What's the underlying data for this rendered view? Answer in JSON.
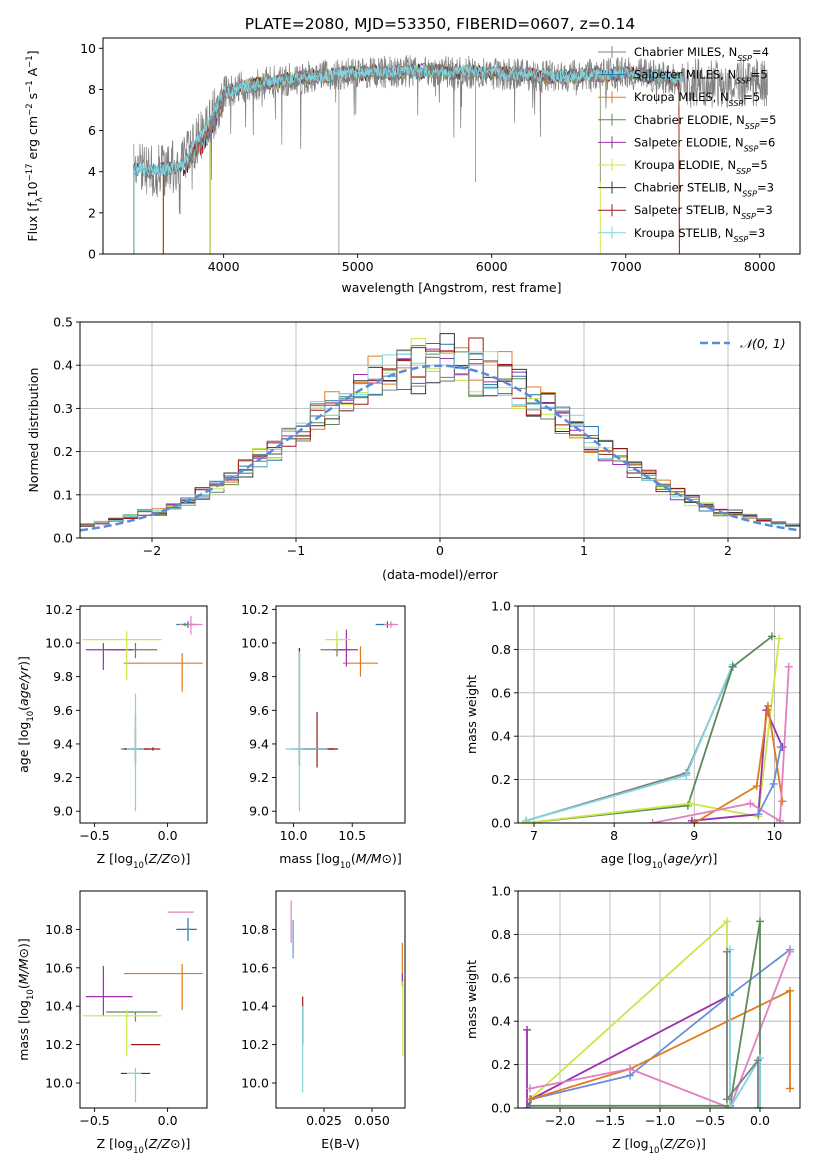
{
  "title": "PLATE=2080, MJD=53350, FIBERID=0607, z=0.14",
  "colors": {
    "chabrier_miles": "#808080",
    "salpeter_miles": "#1f77b4",
    "kroupa_miles": "#e07b1e",
    "chabrier_elodie": "#5a8a5a",
    "salpeter_elodie": "#9b30b0",
    "kroupa_elodie": "#c8e84a",
    "chabrier_stelib": "#333333",
    "salpeter_stelib": "#a01818",
    "kroupa_stelib": "#7fd6e0",
    "normal_line": "#5b8bd8",
    "weight_blue": "#6a8fd8",
    "weight_pink": "#e080c0"
  },
  "chart_data": [
    {
      "id": "spectrum",
      "type": "line",
      "xlabel": "wavelength [Angstrom, rest frame]",
      "ylabel_parts": [
        "Flux [f",
        "λ",
        "10",
        "−17",
        " erg cm",
        "−2",
        " s",
        "−1",
        " A",
        "−1",
        "]"
      ],
      "xlim": [
        3100,
        8300
      ],
      "ylim": [
        0,
        10.5
      ],
      "xticks": [
        4000,
        5000,
        6000,
        7000,
        8000
      ],
      "yticks": [
        0,
        2,
        4,
        6,
        8,
        10
      ],
      "spectrum_profile": {
        "x": [
          3300,
          3500,
          3700,
          3800,
          3900,
          4000,
          4200,
          4500,
          5000,
          5500,
          6000,
          6500,
          7000,
          7400
        ],
        "y": [
          4.2,
          4.0,
          4.4,
          5.5,
          6.5,
          7.9,
          8.2,
          8.5,
          8.8,
          8.9,
          8.8,
          8.6,
          8.8,
          8.5
        ]
      },
      "legend": [
        {
          "imf": "Chabrier",
          "lib": "MILES",
          "n": 4,
          "color_key": "chabrier_miles"
        },
        {
          "imf": "Salpeter",
          "lib": "MILES",
          "n": 5,
          "color_key": "salpeter_miles"
        },
        {
          "imf": "Kroupa",
          "lib": "MILES",
          "n": 5,
          "color_key": "kroupa_miles"
        },
        {
          "imf": "Chabrier",
          "lib": "ELODIE",
          "n": 5,
          "color_key": "chabrier_elodie"
        },
        {
          "imf": "Salpeter",
          "lib": "ELODIE",
          "n": 6,
          "color_key": "salpeter_elodie"
        },
        {
          "imf": "Kroupa",
          "lib": "ELODIE",
          "n": 5,
          "color_key": "kroupa_elodie"
        },
        {
          "imf": "Chabrier",
          "lib": "STELIB",
          "n": 3,
          "color_key": "chabrier_stelib"
        },
        {
          "imf": "Salpeter",
          "lib": "STELIB",
          "n": 3,
          "color_key": "salpeter_stelib"
        },
        {
          "imf": "Kroupa",
          "lib": "STELIB",
          "n": 3,
          "color_key": "kroupa_stelib"
        }
      ],
      "legend_sub": "SSP"
    },
    {
      "id": "residuals",
      "type": "line",
      "xlabel": "(data-model)/error",
      "ylabel": "Normed distribution",
      "xlim": [
        -2.5,
        2.5
      ],
      "ylim": [
        0,
        0.5
      ],
      "xticks": [
        -2,
        -1,
        0,
        1,
        2
      ],
      "yticks": [
        0.0,
        0.1,
        0.2,
        0.3,
        0.4,
        0.5
      ],
      "grid": true,
      "legend_label": "𝒩(0, 1)",
      "legend_position": "top-right",
      "bin_width": 0.1
    },
    {
      "id": "age_vs_Z",
      "type": "scatter",
      "xlabel": "Z [log10(Z/Z⊙)]",
      "ylabel": "age  [log10(age/yr)]",
      "xlim": [
        -0.6,
        0.27
      ],
      "ylim": [
        8.93,
        10.22
      ],
      "xticks": [
        -0.5,
        0.0
      ],
      "yticks": [
        9.0,
        9.2,
        9.4,
        9.6,
        9.8,
        10.0,
        10.2
      ],
      "points": [
        {
          "color_key": "chabrier_miles",
          "x": -0.22,
          "y": 9.37,
          "xe": [
            0.1,
            0.1
          ],
          "ye": [
            0.1,
            0.1
          ]
        },
        {
          "color_key": "salpeter_miles",
          "x": 0.14,
          "y": 10.11,
          "xe": [
            0.08,
            0.06
          ],
          "ye": [
            0.02,
            0.02
          ]
        },
        {
          "color_key": "kroupa_miles",
          "x": 0.1,
          "y": 9.88,
          "xe": [
            0.4,
            0.14
          ],
          "ye": [
            0.17,
            0.06
          ]
        },
        {
          "color_key": "chabrier_elodie",
          "x": -0.22,
          "y": 9.96,
          "xe": [
            0.2,
            0.15
          ],
          "ye": [
            0.05,
            0.04
          ]
        },
        {
          "color_key": "salpeter_elodie",
          "x": -0.44,
          "y": 9.96,
          "xe": [
            0.12,
            0.2
          ],
          "ye": [
            0.12,
            0.04
          ]
        },
        {
          "color_key": "kroupa_elodie",
          "x": -0.28,
          "y": 10.02,
          "xe": [
            0.3,
            0.24
          ],
          "ye": [
            0.24,
            0.05
          ]
        },
        {
          "color_key": "chabrier_stelib",
          "x": -0.22,
          "y": 9.37,
          "xe": [
            0.08,
            0.08
          ],
          "ye": [
            0.08,
            0.2
          ]
        },
        {
          "color_key": "salpeter_stelib",
          "x": -0.1,
          "y": 9.37,
          "xe": [
            0.1,
            0.05
          ],
          "ye": [
            0.01,
            0.01
          ]
        },
        {
          "color_key": "kroupa_stelib",
          "x": -0.22,
          "y": 9.37,
          "xe": [
            0.06,
            0.06
          ],
          "ye": [
            0.37,
            0.33
          ]
        },
        {
          "color_key": "weight_pink",
          "x": 0.16,
          "y": 10.11,
          "xe": [
            0.08,
            0.08
          ],
          "ye": [
            0.06,
            0.05
          ]
        },
        {
          "color_key": "chabrier_elodie",
          "x": 0.12,
          "y": 10.11,
          "xe": [
            0.02,
            0.02
          ],
          "ye": [
            0.01,
            0.01
          ]
        }
      ]
    },
    {
      "id": "age_vs_mass",
      "type": "scatter",
      "xlabel": "mass [log10(M/M⊙)]",
      "xlim": [
        9.85,
        10.95
      ],
      "ylim": [
        8.93,
        10.22
      ],
      "xticks": [
        10.0,
        10.5
      ],
      "yticks": [
        9.0,
        9.2,
        9.4,
        9.6,
        9.8,
        10.0,
        10.2
      ],
      "points": [
        {
          "color_key": "chabrier_miles",
          "x": 10.05,
          "y": 9.37,
          "xe": [
            0.08,
            0.3
          ],
          "ye": [
            0.1,
            0.6
          ]
        },
        {
          "color_key": "salpeter_miles",
          "x": 10.8,
          "y": 10.11,
          "xe": [
            0.1,
            0.06
          ],
          "ye": [
            0.02,
            0.02
          ]
        },
        {
          "color_key": "kroupa_miles",
          "x": 10.57,
          "y": 9.88,
          "xe": [
            0.15,
            0.15
          ],
          "ye": [
            0.08,
            0.1
          ]
        },
        {
          "color_key": "chabrier_elodie",
          "x": 10.37,
          "y": 9.96,
          "xe": [
            0.14,
            0.1
          ],
          "ye": [
            0.04,
            0.05
          ]
        },
        {
          "color_key": "salpeter_elodie",
          "x": 10.45,
          "y": 9.96,
          "xe": [
            0.1,
            0.1
          ],
          "ye": [
            0.1,
            0.12
          ]
        },
        {
          "color_key": "kroupa_elodie",
          "x": 10.37,
          "y": 10.02,
          "xe": [
            0.1,
            0.12
          ],
          "ye": [
            0.06,
            0.05
          ]
        },
        {
          "color_key": "chabrier_stelib",
          "x": 10.05,
          "y": 9.37,
          "xe": [
            0.02,
            0.3
          ],
          "ye": [
            0.1,
            0.6
          ]
        },
        {
          "color_key": "salpeter_stelib",
          "x": 10.2,
          "y": 9.37,
          "xe": [
            0.12,
            0.18
          ],
          "ye": [
            0.11,
            0.22
          ]
        },
        {
          "color_key": "kroupa_stelib",
          "x": 10.05,
          "y": 9.37,
          "xe": [
            0.12,
            0.24
          ],
          "ye": [
            0.37,
            0.58
          ]
        },
        {
          "color_key": "weight_pink",
          "x": 10.83,
          "y": 10.11,
          "xe": [
            0.06,
            0.06
          ],
          "ye": [
            0.02,
            0.02
          ]
        }
      ]
    },
    {
      "id": "weight_vs_age",
      "type": "line",
      "xlabel": "age  [log10(age/yr)]",
      "ylabel": "mass weight",
      "xlim": [
        6.8,
        10.32
      ],
      "ylim": [
        0,
        1.0
      ],
      "xticks": [
        7,
        8,
        9,
        10
      ],
      "yticks": [
        0.0,
        0.2,
        0.4,
        0.6,
        0.8,
        1.0
      ],
      "grid": true,
      "series": [
        {
          "color_key": "chabrier_miles",
          "x": [
            6.9,
            8.9,
            9.48
          ],
          "y": [
            0.01,
            0.23,
            0.72
          ]
        },
        {
          "color_key": "kroupa_stelib",
          "x": [
            6.9,
            8.9,
            9.48
          ],
          "y": [
            0.01,
            0.22,
            0.73
          ]
        },
        {
          "color_key": "chabrier_elodie",
          "x": [
            6.9,
            8.92,
            9.48,
            9.97
          ],
          "y": [
            0.0,
            0.08,
            0.72,
            0.86
          ]
        },
        {
          "color_key": "kroupa_elodie",
          "x": [
            6.9,
            8.95,
            9.8,
            10.06
          ],
          "y": [
            0.0,
            0.09,
            0.03,
            0.85
          ]
        },
        {
          "color_key": "salpeter_elodie",
          "x": [
            8.97,
            9.8,
            9.9,
            10.1
          ],
          "y": [
            0.01,
            0.04,
            0.52,
            0.35
          ]
        },
        {
          "color_key": "kroupa_miles",
          "x": [
            9.0,
            9.78,
            9.92,
            10.1
          ],
          "y": [
            0.0,
            0.17,
            0.54,
            0.1
          ]
        },
        {
          "color_key": "weight_pink",
          "x": [
            8.48,
            9.7,
            10.07,
            10.18
          ],
          "y": [
            0.0,
            0.09,
            0.01,
            0.72
          ]
        },
        {
          "color_key": "weight_blue",
          "x": [
            9.8,
            9.99,
            10.08
          ],
          "y": [
            0.04,
            0.18,
            0.35
          ]
        }
      ]
    },
    {
      "id": "mass_vs_Z",
      "type": "scatter",
      "xlabel": "Z [log10(Z/Z⊙)]",
      "ylabel": "mass [log10(M/M⊙)]",
      "xlim": [
        -0.6,
        0.27
      ],
      "ylim": [
        9.87,
        11.0
      ],
      "xticks": [
        -0.5,
        0.0
      ],
      "yticks": [
        10.0,
        10.2,
        10.4,
        10.6,
        10.8
      ],
      "points": [
        {
          "color_key": "chabrier_stelib",
          "x": -0.22,
          "y": 10.05,
          "xe": [
            0.1,
            0.1
          ],
          "ye": [
            0.0,
            0.0
          ]
        },
        {
          "color_key": "salpeter_miles",
          "x": 0.14,
          "y": 10.8,
          "xe": [
            0.08,
            0.06
          ],
          "ye": [
            0.06,
            0.06
          ]
        },
        {
          "color_key": "kroupa_miles",
          "x": 0.1,
          "y": 10.57,
          "xe": [
            0.4,
            0.14
          ],
          "ye": [
            0.19,
            0.05
          ]
        },
        {
          "color_key": "chabrier_elodie",
          "x": -0.22,
          "y": 10.37,
          "xe": [
            0.2,
            0.15
          ],
          "ye": [
            0.05,
            0.0
          ]
        },
        {
          "color_key": "salpeter_elodie",
          "x": -0.44,
          "y": 10.45,
          "xe": [
            0.12,
            0.2
          ],
          "ye": [
            0.1,
            0.16
          ]
        },
        {
          "color_key": "kroupa_elodie",
          "x": -0.28,
          "y": 10.35,
          "xe": [
            0.3,
            0.24
          ],
          "ye": [
            0.21,
            0.03
          ]
        },
        {
          "color_key": "salpeter_stelib",
          "x": -0.1,
          "y": 10.2,
          "xe": [
            0.15,
            0.05
          ],
          "ye": [
            0.0,
            0.0
          ]
        },
        {
          "color_key": "kroupa_stelib",
          "x": -0.22,
          "y": 10.05,
          "xe": [
            0.06,
            0.04
          ],
          "ye": [
            0.15,
            0.03
          ]
        },
        {
          "color_key": "weight_pink",
          "x": 0.1,
          "y": 10.89,
          "xe": [
            0.1,
            0.08
          ],
          "ye": [
            0.0,
            0.0
          ]
        },
        {
          "color_key": "chabrier_elodie",
          "x": 0.14,
          "y": 10.8,
          "xe": [
            0.02,
            0.03
          ],
          "ye": [
            0.0,
            0.0
          ]
        }
      ]
    },
    {
      "id": "mass_vs_ebv",
      "type": "scatter",
      "xlabel": "E(B-V)",
      "xlim": [
        0.0,
        0.0672
      ],
      "ylim": [
        9.87,
        11.0
      ],
      "xticks": [
        0.025,
        0.05
      ],
      "xticklabels": [
        "0.025",
        "0.050"
      ],
      "yticks": [
        10.0,
        10.2,
        10.4,
        10.6,
        10.8
      ],
      "points": [
        {
          "color_key": "weight_pink",
          "x": 0.0079,
          "y": 10.83,
          "xe": [
            0,
            0
          ],
          "ye": [
            0.1,
            0.12
          ]
        },
        {
          "color_key": "weight_blue",
          "x": 0.0089,
          "y": 10.75,
          "xe": [
            0,
            0
          ],
          "ye": [
            0.1,
            0.1
          ]
        },
        {
          "color_key": "salpeter_stelib",
          "x": 0.0139,
          "y": 10.3,
          "xe": [
            0,
            0
          ],
          "ye": [
            0.1,
            0.15
          ]
        },
        {
          "color_key": "kroupa_stelib",
          "x": 0.0139,
          "y": 10.15,
          "xe": [
            0,
            0
          ],
          "ye": [
            0.2,
            0.25
          ]
        },
        {
          "color_key": "kroupa_miles",
          "x": 0.0658,
          "y": 10.6,
          "xe": [
            0,
            0
          ],
          "ye": [
            0.1,
            0.13
          ]
        },
        {
          "color_key": "kroupa_elodie",
          "x": 0.0661,
          "y": 10.4,
          "xe": [
            0,
            0
          ],
          "ye": [
            0.26,
            0.14
          ]
        },
        {
          "color_key": "salpeter_elodie",
          "x": 0.0658,
          "y": 10.55,
          "xe": [
            0,
            0
          ],
          "ye": [
            0.02,
            0.02
          ]
        }
      ]
    },
    {
      "id": "weight_vs_Z",
      "type": "line",
      "xlabel": "Z [log10(Z/Z⊙)]",
      "ylabel": "mass weight",
      "xlim": [
        -2.42,
        0.4
      ],
      "ylim": [
        0,
        1.0
      ],
      "xticks": [
        -2.0,
        -1.5,
        -1.0,
        -0.5,
        0.0
      ],
      "yticks": [
        0.0,
        0.2,
        0.4,
        0.6,
        0.8,
        1.0
      ],
      "grid": true,
      "series": [
        {
          "color_key": "kroupa_elodie",
          "x": [
            -2.3,
            -0.33,
            -0.33
          ],
          "y": [
            0.04,
            0.86,
            0.0
          ]
        },
        {
          "color_key": "salpeter_elodie",
          "x": [
            -2.33,
            -2.33,
            -2.29,
            -0.3
          ],
          "y": [
            0.36,
            0.0,
            0.04,
            0.52
          ]
        },
        {
          "color_key": "weight_blue",
          "x": [
            -2.29,
            -1.3,
            -0.3,
            0.3
          ],
          "y": [
            0.04,
            0.15,
            0.52,
            0.73
          ]
        },
        {
          "color_key": "kroupa_miles",
          "x": [
            -2.3,
            -1.3,
            0.3,
            0.3
          ],
          "y": [
            0.04,
            0.18,
            0.54,
            0.09
          ]
        },
        {
          "color_key": "weight_pink",
          "x": [
            -2.3,
            -1.3,
            -0.3,
            0.3
          ],
          "y": [
            0.09,
            0.18,
            0.0,
            0.72
          ]
        },
        {
          "color_key": "chabrier_elodie",
          "x": [
            -2.3,
            -0.3,
            0.0,
            0.0
          ],
          "y": [
            0.01,
            0.01,
            0.86,
            0.0
          ]
        },
        {
          "color_key": "kroupa_stelib",
          "x": [
            -0.3,
            -0.3,
            0.0,
            0.0
          ],
          "y": [
            0.73,
            0.0,
            0.23,
            0.0
          ]
        },
        {
          "color_key": "chabrier_miles",
          "x": [
            -0.33,
            -0.33,
            -0.02,
            -0.02
          ],
          "y": [
            0.72,
            0.04,
            0.22,
            0.0
          ]
        }
      ]
    }
  ]
}
